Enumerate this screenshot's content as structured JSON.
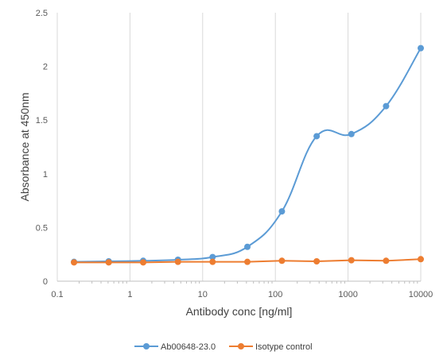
{
  "chart_data": {
    "type": "scatter",
    "title": "",
    "xlabel": "Antibody conc [ng/ml]",
    "ylabel": "Absorbance at 450nm",
    "xscale": "log",
    "xlim": [
      0.1,
      10000
    ],
    "ylim": [
      0,
      2.5
    ],
    "xticks": [
      "0.1",
      "1",
      "10",
      "100",
      "1000",
      "10000"
    ],
    "yticks": [
      "0",
      "0.5",
      "1",
      "1.5",
      "2",
      "2.5"
    ],
    "grid": "vertical major gridlines",
    "legend_position": "bottom",
    "series": [
      {
        "name": "Ab00648-23.0",
        "color": "#5b9bd5",
        "smooth": true,
        "x": [
          0.17,
          0.51,
          1.52,
          4.57,
          13.7,
          41.2,
          123,
          370,
          1111,
          3333,
          10000
        ],
        "y": [
          0.18,
          0.185,
          0.19,
          0.2,
          0.225,
          0.32,
          0.65,
          1.35,
          1.37,
          1.63,
          2.17
        ]
      },
      {
        "name": "Isotype control",
        "color": "#ed7d31",
        "smooth": false,
        "x": [
          0.17,
          0.51,
          1.52,
          4.57,
          13.7,
          41.2,
          123,
          370,
          1111,
          3333,
          10000
        ],
        "y": [
          0.175,
          0.175,
          0.175,
          0.18,
          0.18,
          0.18,
          0.19,
          0.185,
          0.195,
          0.19,
          0.205
        ]
      }
    ]
  }
}
